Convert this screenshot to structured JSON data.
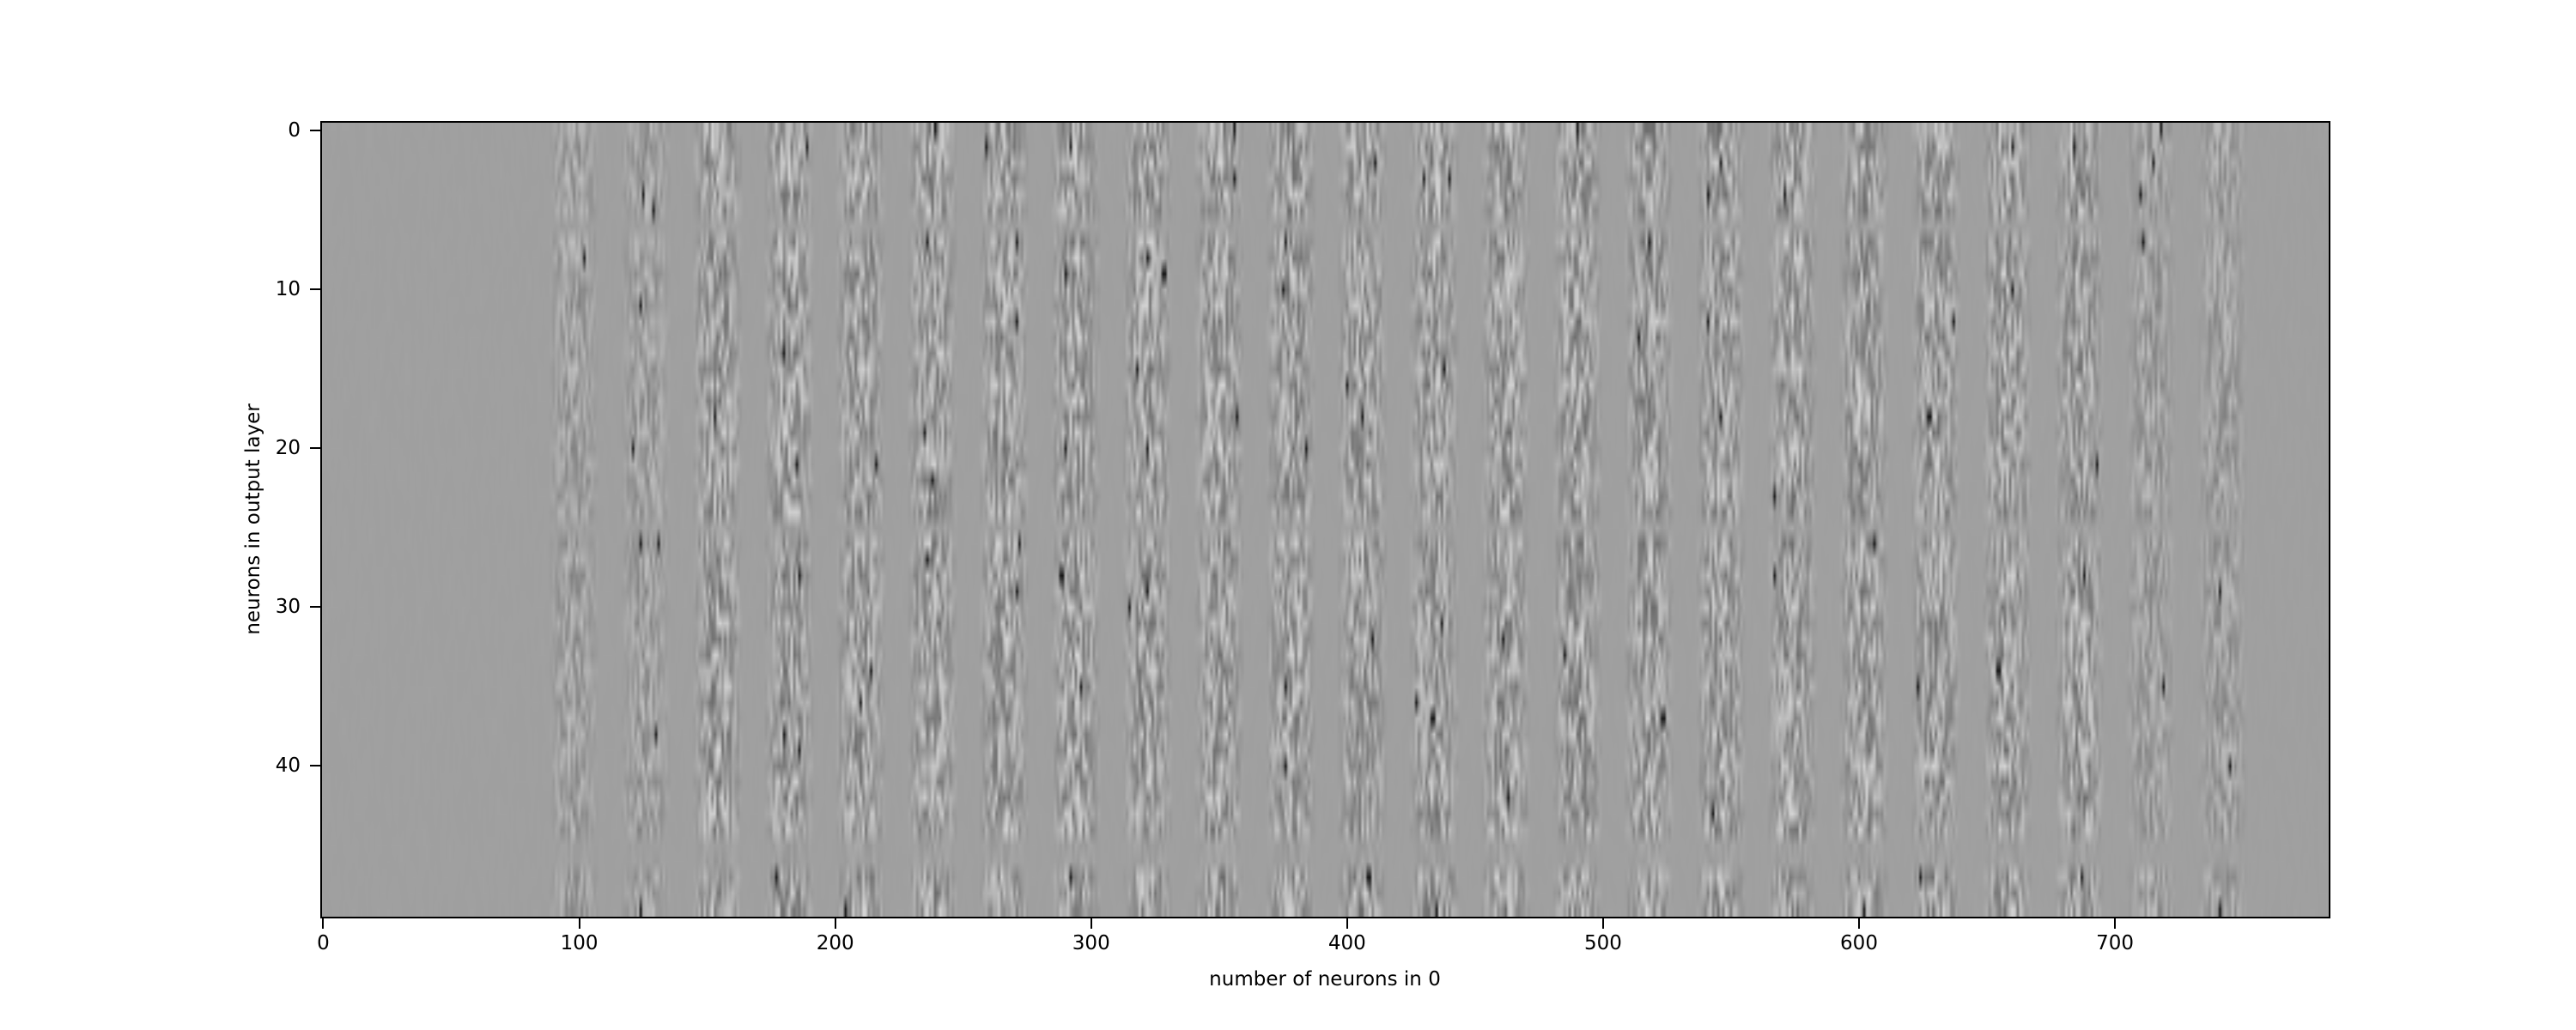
{
  "chart_data": {
    "type": "heatmap",
    "title": "",
    "xlabel": "number of neurons in 0",
    "ylabel": "neurons in output layer",
    "colormap": "gray",
    "columns": 784,
    "rows": 50,
    "xlim": [
      -0.5,
      783.5
    ],
    "ylim": [
      49.5,
      -0.5
    ],
    "xticks": [
      0,
      100,
      200,
      300,
      400,
      500,
      600,
      700
    ],
    "xtick_labels": [
      "0",
      "100",
      "200",
      "300",
      "400",
      "500",
      "600",
      "700"
    ],
    "yticks": [
      0,
      10,
      20,
      30,
      40
    ],
    "ytick_labels": [
      "0",
      "10",
      "20",
      "30",
      "40"
    ],
    "grid": false,
    "background_gray": "#a0a0a0"
  }
}
